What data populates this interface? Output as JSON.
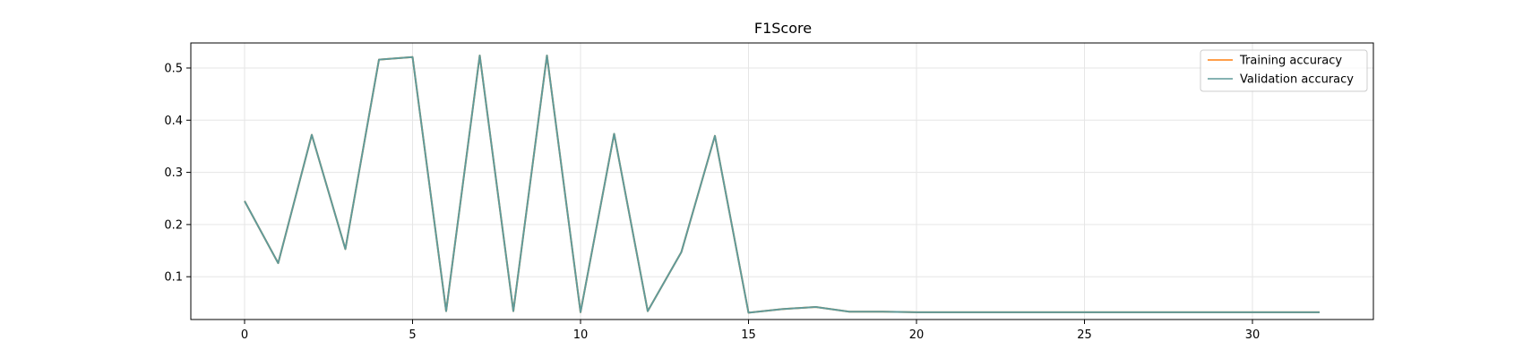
{
  "chart_data": {
    "type": "line",
    "title": "F1Score",
    "xlabel": "",
    "ylabel": "",
    "xlim": [
      -1.6,
      33.6
    ],
    "ylim": [
      0.018,
      0.548
    ],
    "xticks": [
      0,
      5,
      10,
      15,
      20,
      25,
      30
    ],
    "yticks": [
      0.1,
      0.2,
      0.3,
      0.4,
      0.5
    ],
    "grid": true,
    "legend_position": "top-right",
    "x": [
      0,
      1,
      2,
      3,
      4,
      5,
      6,
      7,
      8,
      9,
      10,
      11,
      12,
      13,
      14,
      15,
      16,
      17,
      18,
      19,
      20,
      21,
      22,
      23,
      24,
      25,
      26,
      27,
      28,
      29,
      30,
      31,
      32
    ],
    "series": [
      {
        "name": "Training accuracy",
        "color": "#ff7f0e",
        "values": [
          0.245,
          0.126,
          0.372,
          0.153,
          0.516,
          0.521,
          0.034,
          0.524,
          0.034,
          0.524,
          0.032,
          0.374,
          0.034,
          0.147,
          0.37,
          0.031,
          0.038,
          0.042,
          0.033,
          0.033,
          0.032,
          0.032,
          0.032,
          0.032,
          0.032,
          0.032,
          0.032,
          0.032,
          0.032,
          0.032,
          0.032,
          0.032,
          0.032
        ]
      },
      {
        "name": "Validation accuracy",
        "color": "#5f9a9a",
        "values": [
          0.245,
          0.126,
          0.372,
          0.153,
          0.516,
          0.521,
          0.034,
          0.524,
          0.034,
          0.524,
          0.032,
          0.374,
          0.034,
          0.147,
          0.37,
          0.031,
          0.038,
          0.042,
          0.033,
          0.033,
          0.032,
          0.032,
          0.032,
          0.032,
          0.032,
          0.032,
          0.032,
          0.032,
          0.032,
          0.032,
          0.032,
          0.032,
          0.032
        ]
      }
    ]
  }
}
